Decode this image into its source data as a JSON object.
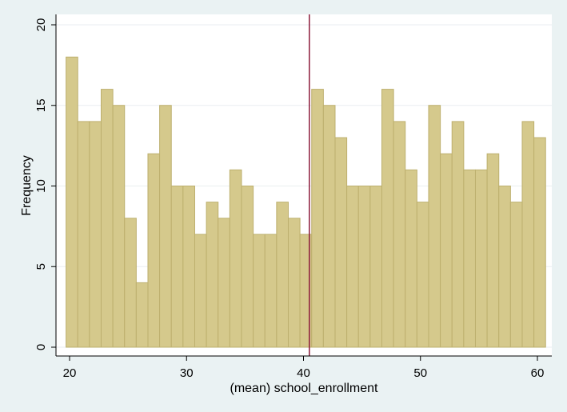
{
  "chart_data": {
    "type": "bar",
    "subtype": "histogram",
    "xlabel": "(mean) school_enrollment",
    "ylabel": "Frequency",
    "xlim": [
      19,
      61
    ],
    "ylim": [
      0,
      20
    ],
    "x_ticks": [
      20,
      30,
      40,
      50,
      60
    ],
    "y_ticks": [
      0,
      5,
      10,
      15,
      20
    ],
    "bin_start": 19.7,
    "bin_width": 1,
    "values": [
      18,
      14,
      14,
      16,
      15,
      8,
      4,
      12,
      15,
      10,
      10,
      7,
      9,
      8,
      11,
      10,
      7,
      7,
      9,
      8,
      7,
      16,
      15,
      13,
      10,
      10,
      10,
      16,
      14,
      11,
      9,
      15,
      12,
      14,
      11,
      11,
      12,
      10,
      9,
      14,
      13
    ],
    "reference_line_x": 40.5,
    "grid": true,
    "colors": {
      "bar_fill": "#d5c98c",
      "bar_stroke": "#bdb06e",
      "reference_line": "#8b1a3a",
      "plot_bg": "#ffffff",
      "outer_bg": "#eaf2f3",
      "grid": "#e9eef0"
    }
  }
}
